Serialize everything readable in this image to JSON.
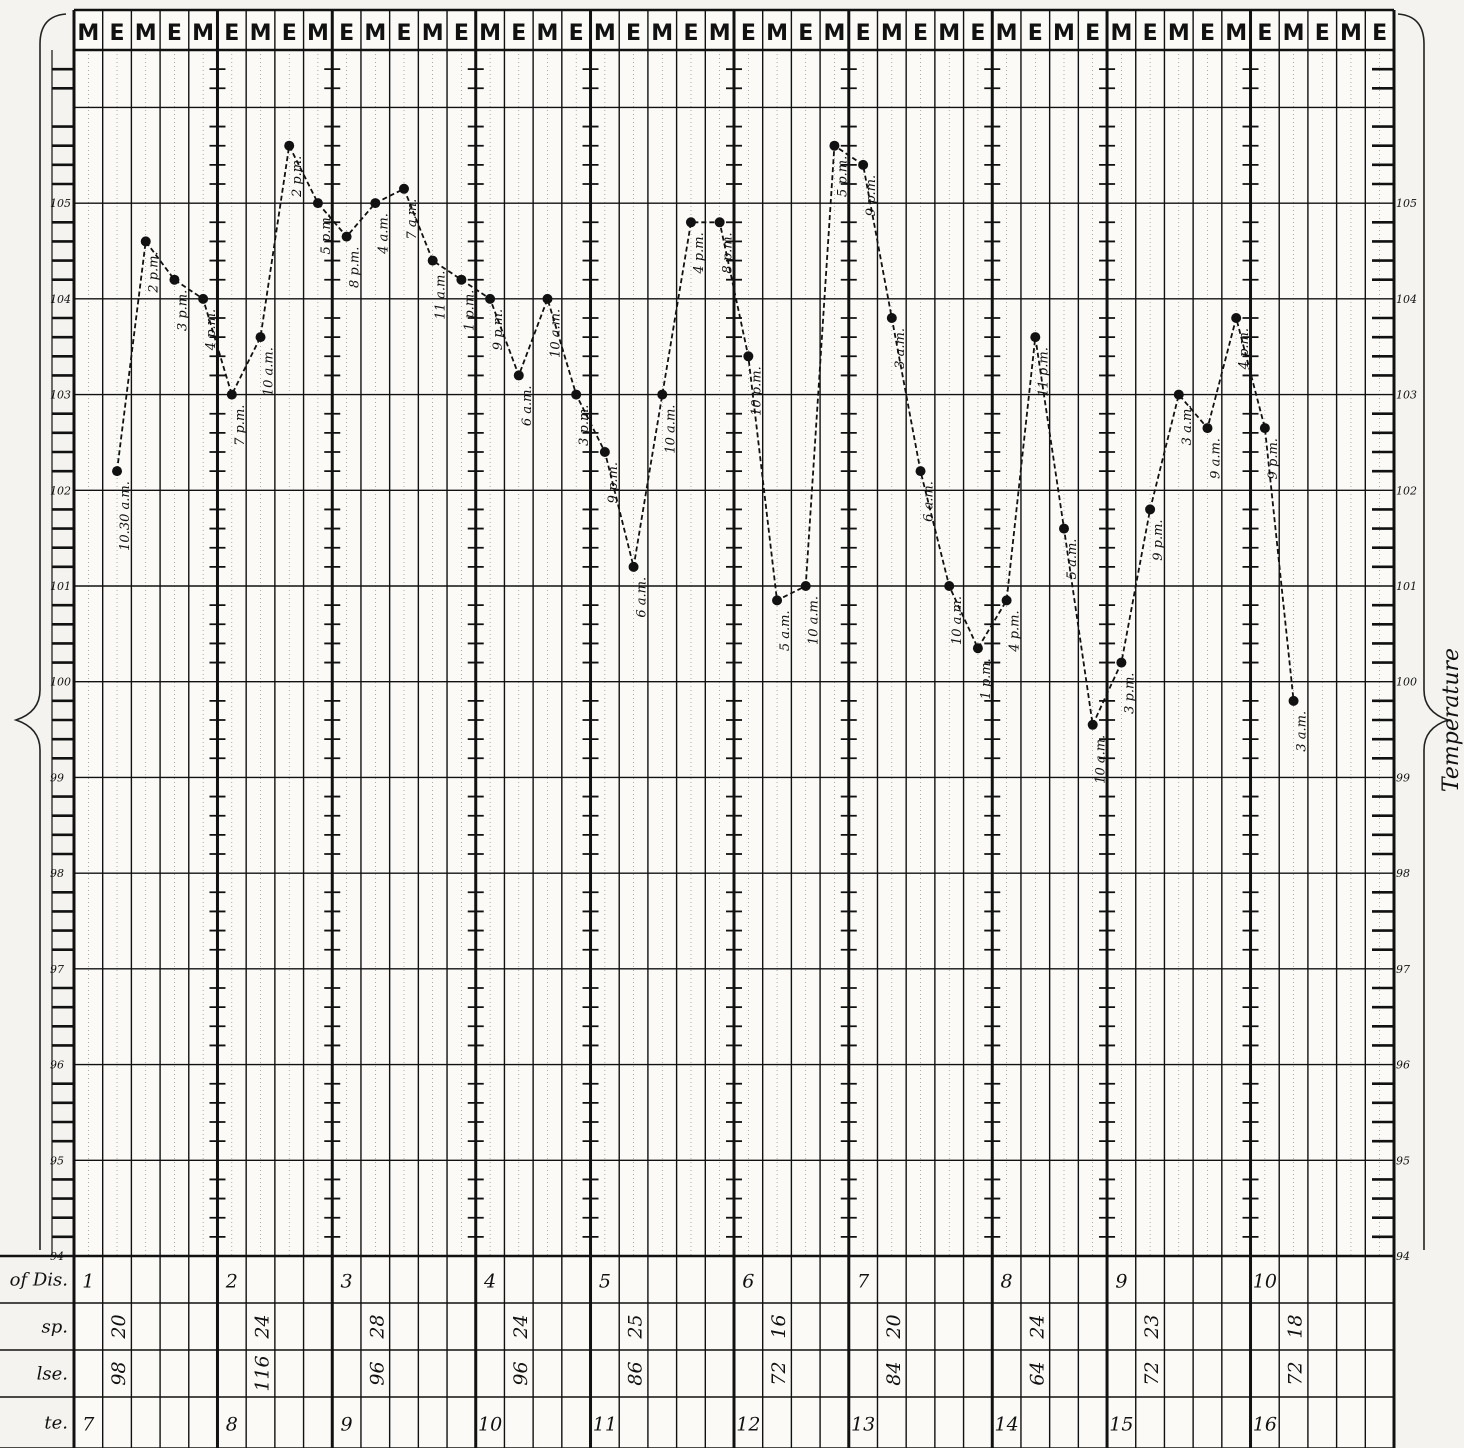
{
  "chart_data": {
    "type": "line",
    "axis_title": "Temperature",
    "header_labels": [
      "M",
      "E",
      "M",
      "E",
      "M",
      "E",
      "M",
      "E",
      "M",
      "E",
      "M",
      "E",
      "M",
      "E",
      "M",
      "E",
      "M",
      "E",
      "M",
      "E",
      "M",
      "E",
      "M",
      "E",
      "M",
      "E",
      "M",
      "E",
      "M",
      "E",
      "M",
      "E",
      "M",
      "E",
      "M",
      "E",
      "M",
      "E",
      "M",
      "E",
      "M",
      "E",
      "M",
      "E",
      "M",
      "E"
    ],
    "y_ticks": [
      "94",
      "95",
      "96",
      "97",
      "98",
      "99",
      "100",
      "101",
      "102",
      "103",
      "104",
      "105"
    ],
    "ylim": [
      94,
      106.6
    ],
    "series": [
      {
        "points": [
          {
            "col": 1,
            "y": 102.2,
            "label": "10.30 a.m."
          },
          {
            "col": 2,
            "y": 104.6,
            "label": "2 p.m."
          },
          {
            "col": 3,
            "y": 104.2,
            "label": "3 p.m."
          },
          {
            "col": 4,
            "y": 104.0,
            "label": "4 p.m."
          },
          {
            "col": 5,
            "y": 103.0,
            "label": "7 p.m."
          },
          {
            "col": 6,
            "y": 103.6,
            "label": "10 a.m."
          },
          {
            "col": 7,
            "y": 105.6,
            "label": "2 p.m."
          },
          {
            "col": 8,
            "y": 105.0,
            "label": "5 p.m."
          },
          {
            "col": 9,
            "y": 104.65,
            "label": "8 p.m."
          },
          {
            "col": 10,
            "y": 105.0,
            "label": "4 a.m."
          },
          {
            "col": 11,
            "y": 105.15,
            "label": "7 a.m."
          },
          {
            "col": 12,
            "y": 104.4,
            "label": "11 a.m."
          },
          {
            "col": 13,
            "y": 104.2,
            "label": "1 p.m."
          },
          {
            "col": 14,
            "y": 104.0,
            "label": "9 p.m."
          },
          {
            "col": 15,
            "y": 103.2,
            "label": "6 a.m."
          },
          {
            "col": 16,
            "y": 104.0,
            "label": "10 a.m."
          },
          {
            "col": 17,
            "y": 103.0,
            "label": "3 p.m."
          },
          {
            "col": 18,
            "y": 102.4,
            "label": "9 p.m."
          },
          {
            "col": 19,
            "y": 101.2,
            "label": "6 a.m."
          },
          {
            "col": 20,
            "y": 103.0,
            "label": "10 a.m."
          },
          {
            "col": 21,
            "y": 104.8,
            "label": "4 p.m."
          },
          {
            "col": 22,
            "y": 104.8,
            "label": "8 p.m."
          },
          {
            "col": 23,
            "y": 103.4,
            "label": "10 p.m."
          },
          {
            "col": 24,
            "y": 100.85,
            "label": "5 a.m."
          },
          {
            "col": 25,
            "y": 101.0,
            "label": "10 a.m."
          },
          {
            "col": 26,
            "y": 105.6,
            "label": "5 p.m."
          },
          {
            "col": 27,
            "y": 105.4,
            "label": "9 p.m."
          },
          {
            "col": 28,
            "y": 103.8,
            "label": "3 a.m."
          },
          {
            "col": 29,
            "y": 102.2,
            "label": "6 a.m."
          },
          {
            "col": 30,
            "y": 101.0,
            "label": "10 a.m."
          },
          {
            "col": 31,
            "y": 100.35,
            "label": "1 p.m."
          },
          {
            "col": 32,
            "y": 100.85,
            "label": "4 p.m."
          },
          {
            "col": 33,
            "y": 103.6,
            "label": "11 p.m."
          },
          {
            "col": 34,
            "y": 101.6,
            "label": "5 a.m."
          },
          {
            "col": 35,
            "y": 99.55,
            "label": "10 a.m."
          },
          {
            "col": 36,
            "y": 100.2,
            "label": "3 p.m."
          },
          {
            "col": 37,
            "y": 101.8,
            "label": "9 p.m."
          },
          {
            "col": 38,
            "y": 103.0,
            "label": "3 a.m."
          },
          {
            "col": 39,
            "y": 102.65,
            "label": "9 a.m."
          },
          {
            "col": 40,
            "y": 103.8,
            "label": "4 p.m."
          },
          {
            "col": 41,
            "y": 102.65,
            "label": "9 p.m."
          },
          {
            "col": 42,
            "y": 99.8,
            "label": "3 a.m."
          }
        ]
      }
    ],
    "row_labels": [
      "of Dis.",
      "sp.",
      "lse.",
      "te."
    ],
    "day_groups": [
      {
        "start": 0,
        "day": "1",
        "resp": "20",
        "pulse": "98",
        "date": "7"
      },
      {
        "start": 5,
        "day": "2",
        "resp": "24",
        "pulse": "116",
        "date": "8"
      },
      {
        "start": 9,
        "day": "3",
        "resp": "28",
        "pulse": "96",
        "date": "9"
      },
      {
        "start": 14,
        "day": "4",
        "resp": "24",
        "pulse": "96",
        "date": "10"
      },
      {
        "start": 18,
        "day": "5",
        "resp": "25",
        "pulse": "86",
        "date": "11"
      },
      {
        "start": 23,
        "day": "6",
        "resp": "16",
        "pulse": "72",
        "date": "12"
      },
      {
        "start": 27,
        "day": "7",
        "resp": "20",
        "pulse": "84",
        "date": "13"
      },
      {
        "start": 32,
        "day": "8",
        "resp": "24",
        "pulse": "64",
        "date": "14"
      },
      {
        "start": 36,
        "day": "9",
        "resp": "23",
        "pulse": "72",
        "date": "15"
      },
      {
        "start": 41,
        "day": "10",
        "resp": "18",
        "pulse": "72",
        "date": "16"
      }
    ],
    "grid": true
  }
}
